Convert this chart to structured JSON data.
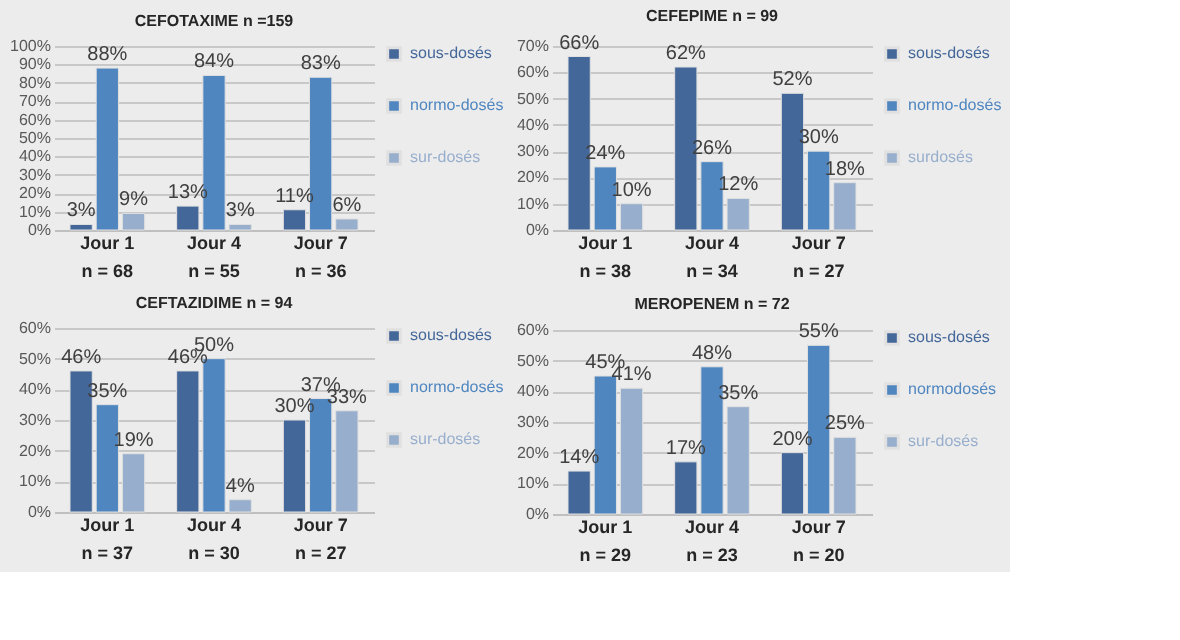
{
  "chart_data": [
    {
      "type": "bar",
      "title": "CEFOTAXIME n =159",
      "categories": [
        "Jour 1\nn = 68",
        "Jour 4\nn = 55",
        "Jour 7\nn = 36"
      ],
      "legend": "right",
      "grid": "y",
      "ylim": [
        0,
        100
      ],
      "yticks": [
        {
          "value": 0,
          "label": "0%"
        },
        {
          "value": 10,
          "label": "10%"
        },
        {
          "value": 20,
          "label": "20%"
        },
        {
          "value": 30,
          "label": "30%"
        },
        {
          "value": 40,
          "label": "40%"
        },
        {
          "value": 50,
          "label": "50%"
        },
        {
          "value": 60,
          "label": "60%"
        },
        {
          "value": 70,
          "label": "70%"
        },
        {
          "value": 80,
          "label": "80%"
        },
        {
          "value": 90,
          "label": "90%"
        },
        {
          "value": 100,
          "label": "100%"
        }
      ],
      "series": [
        {
          "name": "sous-dosés",
          "color": "#44679a",
          "values": [
            3,
            13,
            11
          ],
          "value_labels": [
            "3%",
            "13%",
            "11%"
          ]
        },
        {
          "name": "normo-dosés",
          "color": "#4f86c0",
          "values": [
            88,
            84,
            83
          ],
          "value_labels": [
            "88%",
            "84%",
            "83%"
          ]
        },
        {
          "name": "sur-dosés",
          "color": "#98aecd",
          "values": [
            9,
            3,
            6
          ],
          "value_labels": [
            "9%",
            "3%",
            "6%"
          ]
        }
      ]
    },
    {
      "type": "bar",
      "title": "CEFEPIME n = 99",
      "categories": [
        "Jour 1\nn = 38",
        "Jour 4\nn = 34",
        "Jour 7\nn = 27"
      ],
      "legend": "right",
      "grid": "y",
      "ylim": [
        0,
        70
      ],
      "yticks": [
        {
          "value": 0,
          "label": "0%"
        },
        {
          "value": 10,
          "label": "10%"
        },
        {
          "value": 20,
          "label": "20%"
        },
        {
          "value": 30,
          "label": "30%"
        },
        {
          "value": 40,
          "label": "40%"
        },
        {
          "value": 50,
          "label": "50%"
        },
        {
          "value": 60,
          "label": "60%"
        },
        {
          "value": 70,
          "label": "70%"
        }
      ],
      "series": [
        {
          "name": "sous-dosés",
          "color": "#44679a",
          "values": [
            66,
            62,
            52
          ],
          "value_labels": [
            "66%",
            "62%",
            "52%"
          ]
        },
        {
          "name": "normo-dosés",
          "color": "#4f86c0",
          "values": [
            24,
            26,
            30
          ],
          "value_labels": [
            "24%",
            "26%",
            "30%"
          ]
        },
        {
          "name": "surdosés",
          "color": "#98aecd",
          "values": [
            10,
            12,
            18
          ],
          "value_labels": [
            "10%",
            "12%",
            "18%"
          ]
        }
      ]
    },
    {
      "type": "bar",
      "title": "CEFTAZIDIME n = 94",
      "categories": [
        "Jour 1\nn = 37",
        "Jour 4\nn = 30",
        "Jour 7\nn = 27"
      ],
      "legend": "right",
      "grid": "y",
      "ylim": [
        0,
        60
      ],
      "yticks": [
        {
          "value": 0,
          "label": "0%"
        },
        {
          "value": 10,
          "label": "10%"
        },
        {
          "value": 20,
          "label": "20%"
        },
        {
          "value": 30,
          "label": "30%"
        },
        {
          "value": 40,
          "label": "40%"
        },
        {
          "value": 50,
          "label": "50%"
        },
        {
          "value": 60,
          "label": "60%"
        }
      ],
      "series": [
        {
          "name": "sous-dosés",
          "color": "#44679a",
          "values": [
            46,
            46,
            30
          ],
          "value_labels": [
            "46%",
            "46%",
            "30%"
          ]
        },
        {
          "name": "normo-dosés",
          "color": "#4f86c0",
          "values": [
            35,
            50,
            37
          ],
          "value_labels": [
            "35%",
            "50%",
            "37%"
          ]
        },
        {
          "name": "sur-dosés",
          "color": "#98aecd",
          "values": [
            19,
            4,
            33
          ],
          "value_labels": [
            "19%",
            "4%",
            "33%"
          ]
        }
      ]
    },
    {
      "type": "bar",
      "title": "MEROPENEM n = 72",
      "categories": [
        "Jour 1\nn = 29",
        "Jour 4\nn = 23",
        "Jour 7\nn = 20"
      ],
      "legend": "right",
      "grid": "y",
      "ylim": [
        0,
        60
      ],
      "yticks": [
        {
          "value": 0,
          "label": "0%"
        },
        {
          "value": 10,
          "label": "10%"
        },
        {
          "value": 20,
          "label": "20%"
        },
        {
          "value": 30,
          "label": "30%"
        },
        {
          "value": 40,
          "label": "40%"
        },
        {
          "value": 50,
          "label": "50%"
        },
        {
          "value": 60,
          "label": "60%"
        }
      ],
      "series": [
        {
          "name": "sous-dosés",
          "color": "#44679a",
          "values": [
            14,
            17,
            20
          ],
          "value_labels": [
            "14%",
            "17%",
            "20%"
          ]
        },
        {
          "name": "normodosés",
          "color": "#4f86c0",
          "values": [
            45,
            48,
            55
          ],
          "value_labels": [
            "45%",
            "48%",
            "55%"
          ]
        },
        {
          "name": "sur-dosés",
          "color": "#98aecd",
          "values": [
            41,
            35,
            25
          ],
          "value_labels": [
            "41%",
            "35%",
            "25%"
          ]
        }
      ]
    }
  ]
}
